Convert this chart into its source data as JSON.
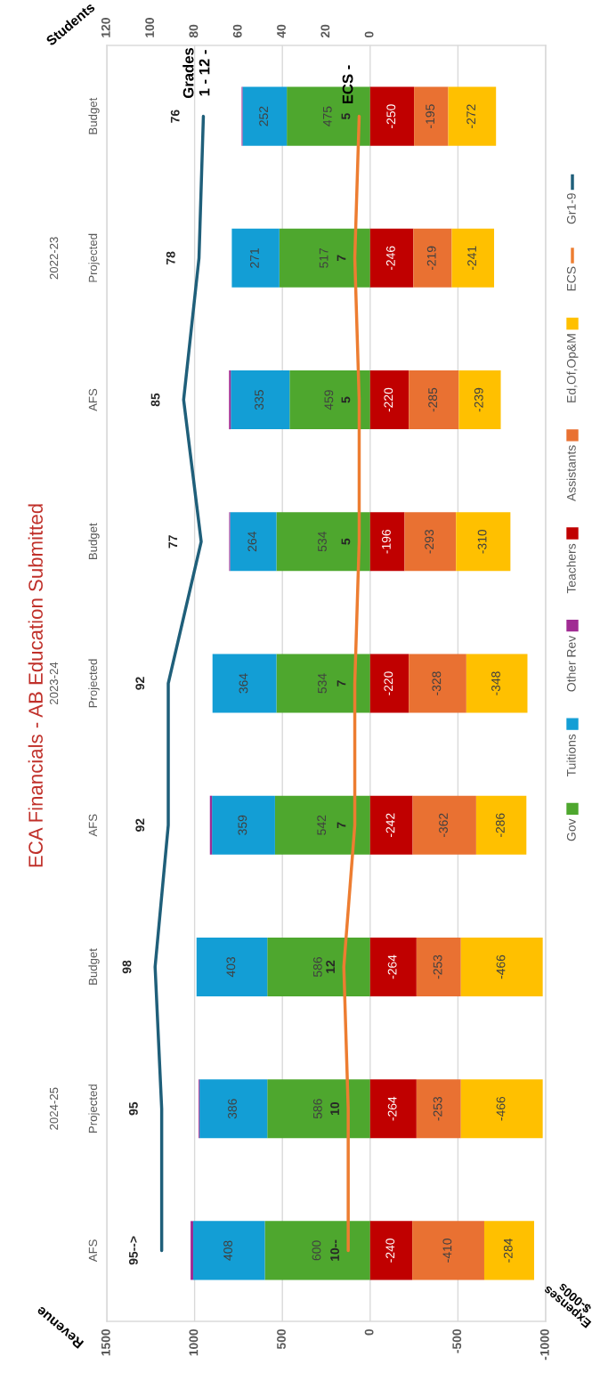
{
  "chart_data": {
    "type": "bar",
    "orientation": "horizontal",
    "stacked": true,
    "title": "ECA Financials - AB Education Submitted",
    "xlabel": "Revenue",
    "x2label": "Students",
    "categories": [
      "Budget",
      "Projected",
      "AFS",
      "Budget",
      "Projected",
      "AFS",
      "Budget",
      "Projected",
      "AFS"
    ],
    "annotations": [
      "2022-23",
      "2023-24",
      "2024-25",
      "Grades\n1 - 12 -",
      "ECS -",
      "Expenses\n$-000s"
    ],
    "xlim": [
      1500,
      -1000
    ],
    "xticks": [
      1500,
      1000,
      500,
      0,
      -500,
      -1000
    ],
    "x2lim": [
      120,
      -80
    ],
    "x2ticks": [
      120,
      100,
      80,
      60,
      40,
      20,
      0
    ],
    "grid": "x",
    "legend": "right",
    "series": [
      {
        "name": "Gov",
        "color": "#4ea72e",
        "values": [
          475,
          517,
          459,
          534,
          534,
          542,
          586,
          586,
          600
        ],
        "value_labels": [
          "475",
          "517",
          "459",
          "534",
          "534",
          "542",
          "586",
          "586",
          "600"
        ]
      },
      {
        "name": "Tuitions",
        "color": "#139ed5",
        "values": [
          252,
          271,
          335,
          264,
          364,
          359,
          403,
          386,
          408
        ],
        "value_labels": [
          "252",
          "271",
          "335",
          "264",
          "364",
          "359",
          "403",
          "386",
          "408"
        ]
      },
      {
        "name": "Other Rev",
        "color": "#a02b93",
        "values": [
          5,
          0,
          10,
          5,
          0,
          12,
          0,
          5,
          15
        ]
      },
      {
        "name": "Teachers",
        "color": "#c00000",
        "values": [
          -250,
          -246,
          -220,
          -196,
          -220,
          -242,
          -264,
          -264,
          -240
        ],
        "value_labels": [
          "-250",
          "-246",
          "-220",
          "-196",
          "-220",
          "-242",
          "-264",
          "-264",
          "-240"
        ]
      },
      {
        "name": "Assistants",
        "color": "#e97132",
        "values": [
          -195,
          -219,
          -285,
          -293,
          -328,
          -362,
          -253,
          -253,
          -410
        ],
        "value_labels": [
          "-195",
          "-219",
          "-285",
          "-293",
          "-328",
          "-362",
          "-253",
          "-253",
          "-410"
        ]
      },
      {
        "name": "Ed,Of,Op&M",
        "color": "#ffc000",
        "values": [
          -272,
          -241,
          -239,
          -310,
          -348,
          -286,
          -466,
          -466,
          -284
        ],
        "value_labels": [
          "-272",
          "-241",
          "-239",
          "-310",
          "-348",
          "-286",
          "-466",
          "-466",
          "-284"
        ]
      },
      {
        "name": "ECS",
        "type": "line",
        "axis": "x2",
        "color": "#ed7d31",
        "values": [
          5,
          7,
          5,
          5,
          7,
          7,
          12,
          10,
          10
        ],
        "value_labels": [
          "5",
          "7",
          "5",
          "5",
          "7",
          "7",
          "12",
          "10",
          "10--"
        ]
      },
      {
        "name": "Gr1-9",
        "type": "line",
        "axis": "x2",
        "color": "#1f5f7a",
        "values": [
          76,
          78,
          85,
          77,
          92,
          92,
          98,
          95,
          95
        ],
        "value_labels": [
          "76",
          "78",
          "85",
          "77",
          "92",
          "92",
          "98",
          "95",
          "95-->"
        ]
      }
    ]
  }
}
